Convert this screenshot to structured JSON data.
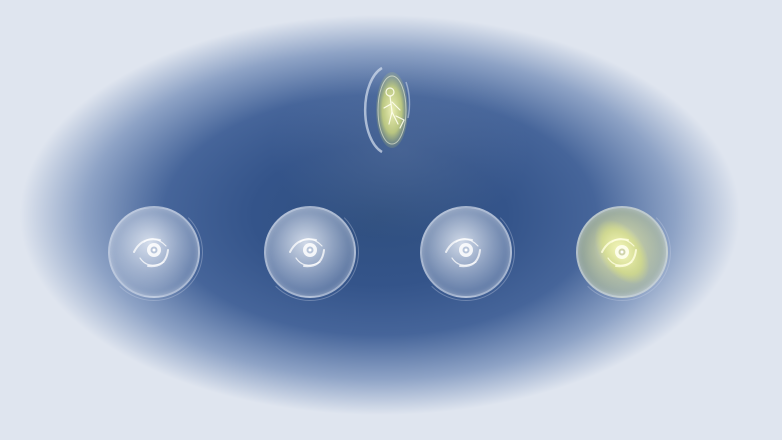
{
  "scene": {
    "background_center_color": "#2f4f7f",
    "background_edge_color": "#e9edf4",
    "glow_color": "#e8ef7a",
    "orb_color": "#d8e0ec"
  },
  "top_item": {
    "icon": "figure-medal-icon",
    "highlighted": true
  },
  "orbs": [
    {
      "icon": "swirl-orb-icon",
      "highlighted": false
    },
    {
      "icon": "swirl-orb-icon",
      "highlighted": false
    },
    {
      "icon": "swirl-orb-icon",
      "highlighted": false
    },
    {
      "icon": "swirl-orb-icon",
      "highlighted": true
    }
  ]
}
